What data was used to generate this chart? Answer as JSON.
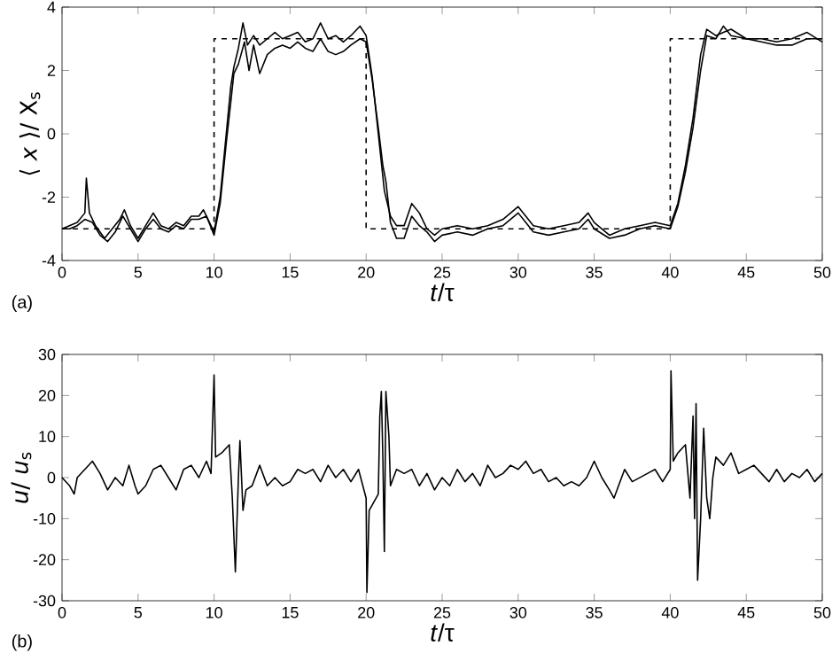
{
  "chart_data": [
    {
      "type": "line",
      "xlabel": "*t*/τ",
      "ylabel": "⟨ *x* ⟩/ X$_{s}$",
      "xlim": [
        0,
        50
      ],
      "ylim": [
        -4,
        4
      ],
      "xticks": [
        0,
        5,
        10,
        15,
        20,
        25,
        30,
        35,
        40,
        45,
        50
      ],
      "yticks": [
        -4,
        -2,
        0,
        2,
        4
      ],
      "annotations": [
        "(a)"
      ],
      "series": [
        {
          "color": "#000000",
          "line_style": "solid",
          "x": [
            0,
            0.5,
            1,
            1.5,
            1.6,
            1.8,
            2.2,
            2.8,
            3.3,
            3.8,
            4.1,
            4.5,
            5,
            5.5,
            6,
            6.5,
            7,
            7.5,
            8,
            8.5,
            9,
            9.3,
            9.7,
            10,
            10.4,
            10.8,
            11.1,
            11.3,
            11.6,
            11.9,
            12.2,
            12.6,
            13,
            13.5,
            14,
            14.5,
            15,
            15.5,
            16,
            16.5,
            17,
            17.5,
            18,
            18.5,
            19,
            19.6,
            20,
            20.4,
            20.8,
            21.2,
            21.6,
            22,
            22.5,
            23,
            23.5,
            24,
            24.5,
            25,
            26,
            27,
            28,
            29,
            30,
            30.5,
            31,
            32,
            33,
            34,
            34.6,
            35,
            36,
            37,
            38,
            39,
            40,
            40.5,
            41,
            41.5,
            42,
            42.4,
            43,
            43.5,
            44,
            45,
            46,
            47,
            48,
            49,
            50
          ],
          "values": [
            -3.0,
            -2.9,
            -2.8,
            -2.5,
            -1.4,
            -2.5,
            -2.9,
            -3.3,
            -3.0,
            -2.7,
            -2.4,
            -2.9,
            -3.3,
            -2.9,
            -2.5,
            -2.9,
            -3.0,
            -2.8,
            -2.9,
            -2.6,
            -2.6,
            -2.4,
            -2.8,
            -3.1,
            -2.0,
            0,
            1.5,
            2.1,
            2.7,
            3.5,
            2.8,
            3.1,
            2.8,
            3.0,
            3.2,
            3.0,
            3.1,
            3.2,
            2.9,
            3.0,
            3.5,
            3.0,
            3.1,
            2.9,
            3.1,
            3.4,
            3.1,
            1.8,
            0.0,
            -1.8,
            -2.6,
            -2.9,
            -2.9,
            -2.2,
            -2.5,
            -3.0,
            -3.2,
            -3.0,
            -2.9,
            -3.0,
            -2.9,
            -2.7,
            -2.3,
            -2.6,
            -2.9,
            -3.0,
            -2.9,
            -2.8,
            -2.5,
            -2.8,
            -3.2,
            -3.0,
            -2.9,
            -2.8,
            -2.9,
            -2.2,
            -1.0,
            0.5,
            2.5,
            3.3,
            3.1,
            3.2,
            3.3,
            3.0,
            3.0,
            2.9,
            3.0,
            3.2,
            2.9
          ]
        },
        {
          "color": "#000000",
          "line_style": "solid",
          "x": [
            0,
            0.5,
            1,
            1.5,
            2,
            2.5,
            3,
            3.5,
            4,
            4.5,
            5,
            5.5,
            6,
            6.5,
            7,
            7.5,
            8,
            8.5,
            9,
            9.5,
            10,
            10.4,
            10.8,
            11.1,
            11.3,
            11.6,
            12,
            12.3,
            12.6,
            13,
            13.5,
            14,
            14.5,
            15,
            15.5,
            16,
            16.5,
            17,
            17.5,
            18,
            18.5,
            19,
            19.6,
            20,
            20.4,
            20.8,
            21.1,
            21.3,
            21.6,
            22,
            22.5,
            23,
            23.5,
            24,
            24.5,
            25,
            26,
            27,
            28,
            29,
            30,
            30.5,
            31,
            32,
            33,
            34,
            34.6,
            35,
            36,
            37,
            38,
            39,
            40,
            40.5,
            41,
            41.5,
            42,
            42.4,
            43,
            43.5,
            44,
            45,
            46,
            47,
            48,
            49,
            50
          ],
          "values": [
            -3.0,
            -3.0,
            -2.9,
            -2.7,
            -2.8,
            -3.2,
            -3.4,
            -3.1,
            -2.6,
            -3.0,
            -3.4,
            -3.0,
            -2.7,
            -3.0,
            -3.1,
            -2.9,
            -3.0,
            -2.7,
            -2.7,
            -2.6,
            -3.2,
            -2.2,
            -0.3,
            1.0,
            1.9,
            2.2,
            2.9,
            2.0,
            2.8,
            1.9,
            2.5,
            2.7,
            2.8,
            2.7,
            2.9,
            2.7,
            2.6,
            3.0,
            2.6,
            2.5,
            2.6,
            2.8,
            3.0,
            2.9,
            1.7,
            0.2,
            -1.0,
            -1.5,
            -2.8,
            -3.3,
            -3.3,
            -2.6,
            -2.9,
            -3.1,
            -3.4,
            -3.2,
            -3.1,
            -3.2,
            -3.0,
            -2.9,
            -2.5,
            -2.8,
            -3.1,
            -3.2,
            -3.1,
            -3.0,
            -2.7,
            -3.0,
            -3.3,
            -3.2,
            -3.0,
            -2.9,
            -3.0,
            -2.3,
            -1.2,
            0.2,
            2.0,
            3.1,
            3.0,
            3.4,
            3.1,
            3.0,
            2.9,
            2.8,
            2.8,
            3.0,
            3.0
          ]
        },
        {
          "color": "#000000",
          "line_style": "dashed",
          "x": [
            0,
            10,
            10,
            20,
            20,
            40,
            40,
            50
          ],
          "values": [
            -3,
            -3,
            3,
            3,
            -3,
            -3,
            3,
            3
          ]
        }
      ]
    },
    {
      "type": "line",
      "xlabel": "*t*/τ",
      "ylabel": "*u*/ *u*$_{s}$",
      "xlim": [
        0,
        50
      ],
      "ylim": [
        -30,
        30
      ],
      "xticks": [
        0,
        5,
        10,
        15,
        20,
        25,
        30,
        35,
        40,
        45,
        50
      ],
      "yticks": [
        -30,
        -20,
        -10,
        0,
        10,
        20,
        30
      ],
      "annotations": [
        "(b)"
      ],
      "series": [
        {
          "color": "#000000",
          "line_style": "solid",
          "x": [
            0,
            0.5,
            0.8,
            1,
            1.5,
            2,
            2.5,
            3,
            3.5,
            4,
            4.4,
            4.8,
            5,
            5.5,
            6,
            6.5,
            7,
            7.5,
            8,
            8.5,
            9,
            9.5,
            9.8,
            10,
            10.1,
            10.5,
            11,
            11.2,
            11.4,
            11.6,
            11.7,
            11.9,
            12.1,
            12.5,
            13,
            13.5,
            14,
            14.5,
            15,
            15.5,
            16,
            16.5,
            17,
            17.5,
            18,
            18.5,
            19,
            19.5,
            20,
            20.05,
            20.2,
            20.5,
            20.8,
            20.9,
            21,
            21.1,
            21.2,
            21.3,
            21.5,
            21.6,
            22,
            22.5,
            23,
            23.5,
            24,
            24.5,
            25,
            25.5,
            26,
            26.5,
            27,
            27.5,
            28,
            28.5,
            29,
            29.5,
            30,
            30.5,
            31,
            31.5,
            32,
            32.5,
            33,
            33.5,
            34,
            34.5,
            35,
            35.5,
            36,
            36.3,
            36.8,
            37,
            37.5,
            38,
            38.5,
            39,
            39.5,
            40,
            40.05,
            40.2,
            40.5,
            41,
            41.3,
            41.5,
            41.6,
            41.7,
            41.8,
            42,
            42.2,
            42.4,
            42.6,
            42.8,
            43,
            43.5,
            44,
            44.5,
            45,
            45.5,
            46,
            46.5,
            47,
            47.5,
            48,
            48.5,
            49,
            49.5,
            50
          ],
          "values": [
            0,
            -2,
            -4,
            0,
            2,
            4,
            1,
            -3,
            0,
            -2,
            3,
            -2,
            -4,
            -2,
            2,
            3,
            0,
            -3,
            2,
            3,
            0,
            4,
            1,
            25,
            5,
            6,
            8,
            -5,
            -23,
            0,
            9,
            -8,
            -3,
            -2,
            3,
            -2,
            0,
            -2,
            -1,
            2,
            1,
            2,
            -1,
            3,
            0,
            2,
            -1,
            2,
            -5,
            -28,
            -8,
            -6,
            -4,
            15,
            21,
            5,
            -18,
            21,
            10,
            -2,
            2,
            1,
            2,
            -2,
            1,
            -3,
            0,
            -2,
            2,
            -1,
            1,
            -2,
            3,
            0,
            1,
            3,
            2,
            4,
            1,
            2,
            -1,
            0,
            -2,
            -1,
            -2,
            0,
            4,
            0,
            -3,
            -5,
            0,
            2,
            -1,
            0,
            1,
            2,
            -1,
            2,
            26,
            4,
            6,
            8,
            -5,
            15,
            -10,
            18,
            -25,
            -10,
            12,
            -5,
            -10,
            0,
            5,
            3,
            6,
            1,
            2,
            3,
            1,
            -1,
            2,
            -1,
            1,
            0,
            2,
            -1,
            1
          ]
        }
      ]
    }
  ]
}
